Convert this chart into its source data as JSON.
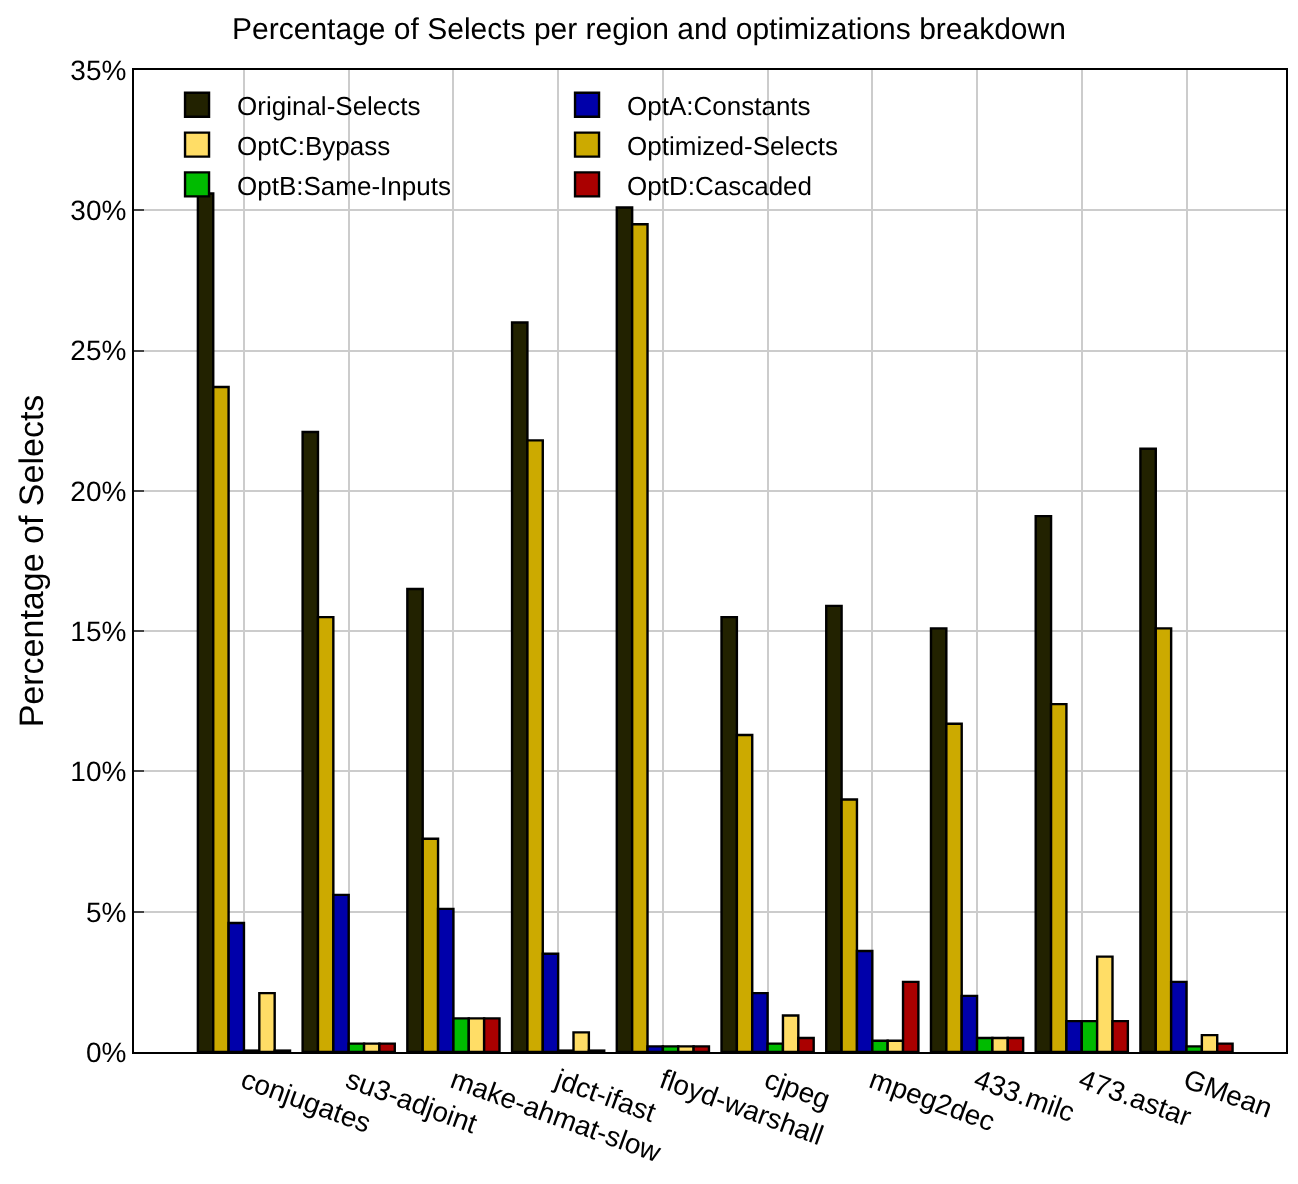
{
  "chart_data": {
    "type": "bar",
    "title": "Percentage of Selects per region and optimizations breakdown",
    "ylabel": "Percentage of Selects",
    "categories": [
      "conjugates",
      "su3-adjoint",
      "make-ahmat-slow",
      "jdct-ifast",
      "floyd-warshall",
      "cjpeg",
      "mpeg2dec",
      "433.milc",
      "473.astar",
      "GMean"
    ],
    "series": [
      {
        "name": "Original-Selects",
        "color": "#222200",
        "values": [
          30.6,
          22.1,
          16.5,
          26.0,
          30.1,
          15.5,
          15.9,
          15.1,
          19.1,
          21.5
        ]
      },
      {
        "name": "Optimized-Selects",
        "color": "#ccaa00",
        "values": [
          23.7,
          15.5,
          7.6,
          21.8,
          29.5,
          11.3,
          9.0,
          11.7,
          12.4,
          15.1
        ]
      },
      {
        "name": "OptA:Constants",
        "color": "#0000aa",
        "values": [
          4.6,
          5.6,
          5.1,
          3.5,
          0.2,
          2.1,
          3.6,
          2.0,
          1.1,
          2.5
        ]
      },
      {
        "name": "OptB:Same-Inputs",
        "color": "#00bb00",
        "values": [
          0.05,
          0.3,
          1.2,
          0.05,
          0.2,
          0.3,
          0.4,
          0.5,
          1.1,
          0.2
        ]
      },
      {
        "name": "OptC:Bypass",
        "color": "#ffdd66",
        "values": [
          2.1,
          0.3,
          1.2,
          0.7,
          0.2,
          1.3,
          0.4,
          0.5,
          3.4,
          0.6
        ]
      },
      {
        "name": "OptD:Cascaded",
        "color": "#aa0000",
        "values": [
          0.05,
          0.3,
          1.2,
          0.05,
          0.2,
          0.5,
          2.5,
          0.5,
          1.1,
          0.3
        ]
      }
    ],
    "ylim": [
      0,
      35
    ],
    "yticks": [
      {
        "value": 0,
        "label": "0%"
      },
      {
        "value": 5,
        "label": "5%"
      },
      {
        "value": 10,
        "label": "10%"
      },
      {
        "value": 15,
        "label": "15%"
      },
      {
        "value": 20,
        "label": "20%"
      },
      {
        "value": 25,
        "label": "25%"
      },
      {
        "value": 30,
        "label": "30%"
      },
      {
        "value": 35,
        "label": "35%"
      }
    ],
    "grid": true,
    "legend": "top"
  }
}
